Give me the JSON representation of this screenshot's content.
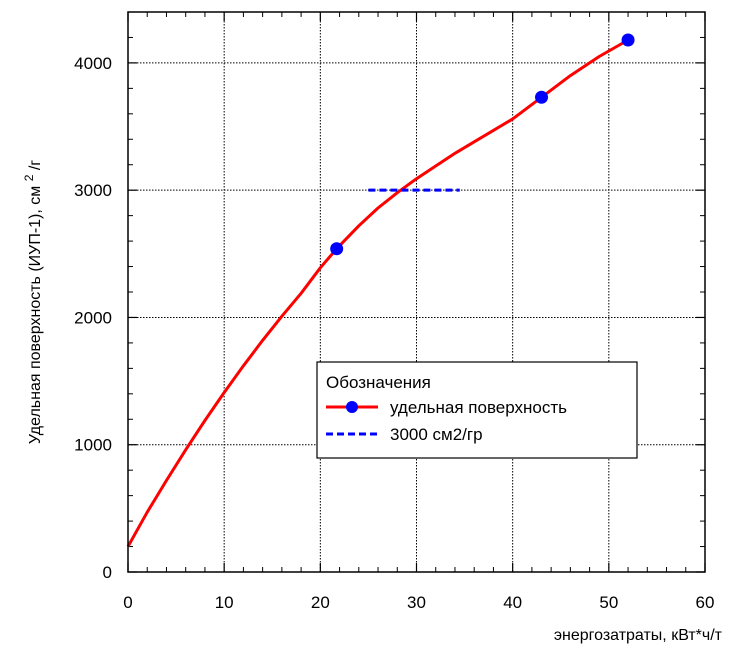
{
  "chart_data": {
    "type": "line",
    "xlabel": "энергозатраты, кВт*ч/т",
    "ylabel": "Удельная поверхность (ИУП-1), см",
    "ylabel_sup": "2",
    "ylabel_suffix": "/г",
    "xlim": [
      0,
      60
    ],
    "ylim": [
      0,
      4400
    ],
    "x_ticks": [
      0,
      10,
      20,
      30,
      40,
      50,
      60
    ],
    "y_ticks": [
      0,
      1000,
      2000,
      3000,
      4000
    ],
    "grid": true,
    "legend": {
      "title": "Обозначения",
      "placement": "center-right"
    },
    "series": [
      {
        "name": "удельная поверхность",
        "color": "#ff0000",
        "marker_color": "#0000ff",
        "points": [
          {
            "x": 21.7,
            "y": 2540
          },
          {
            "x": 43,
            "y": 3730
          },
          {
            "x": 52,
            "y": 4180
          }
        ],
        "curve": [
          {
            "x": 0,
            "y": 200
          },
          {
            "x": 2,
            "y": 470
          },
          {
            "x": 4,
            "y": 720
          },
          {
            "x": 6,
            "y": 960
          },
          {
            "x": 8,
            "y": 1190
          },
          {
            "x": 10,
            "y": 1410
          },
          {
            "x": 12,
            "y": 1620
          },
          {
            "x": 14,
            "y": 1820
          },
          {
            "x": 16,
            "y": 2010
          },
          {
            "x": 18,
            "y": 2190
          },
          {
            "x": 20,
            "y": 2390
          },
          {
            "x": 21.7,
            "y": 2540
          },
          {
            "x": 24,
            "y": 2720
          },
          {
            "x": 26,
            "y": 2860
          },
          {
            "x": 28,
            "y": 2980
          },
          {
            "x": 30,
            "y": 3090
          },
          {
            "x": 32,
            "y": 3190
          },
          {
            "x": 34,
            "y": 3290
          },
          {
            "x": 36,
            "y": 3380
          },
          {
            "x": 38,
            "y": 3470
          },
          {
            "x": 40,
            "y": 3560
          },
          {
            "x": 43,
            "y": 3730
          },
          {
            "x": 46,
            "y": 3900
          },
          {
            "x": 49,
            "y": 4050
          },
          {
            "x": 52,
            "y": 4180
          }
        ]
      },
      {
        "name": "3000 см2/гр",
        "color": "#0000ff",
        "dashed": true,
        "points": [
          {
            "x": 25,
            "y": 3000
          },
          {
            "x": 34.5,
            "y": 3000
          }
        ]
      }
    ]
  }
}
